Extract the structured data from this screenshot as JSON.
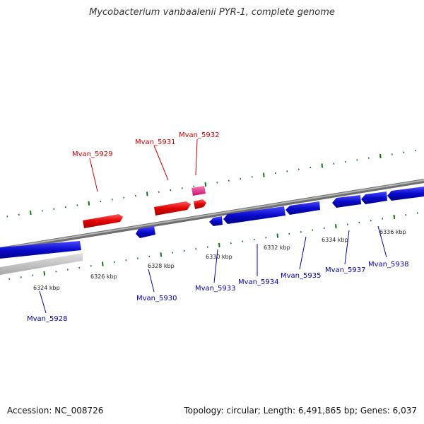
{
  "title": "Mycobacterium vanbaalenii PYR-1, complete genome",
  "footer": {
    "accession": "Accession: NC_008726",
    "stats": "Topology: circular; Length: 6,491,865 bp; Genes: 6,037"
  },
  "colors": {
    "forward_gene": "#e00000",
    "reverse_gene": "#0a0acc",
    "rna_gene": "#e0288c",
    "backbone": "#8c8c8c",
    "tick": "#117711",
    "forward_label": "#cc0000",
    "reverse_label": "#0000aa"
  },
  "ticks": [
    {
      "label": "6324 kbp"
    },
    {
      "label": "6326 kbp"
    },
    {
      "label": "6328 kbp"
    },
    {
      "label": "6330 kbp"
    },
    {
      "label": "6332 kbp"
    },
    {
      "label": "6334 kbp"
    },
    {
      "label": "6336 kbp"
    }
  ],
  "genes_forward": [
    {
      "label": "Mvan_5929"
    },
    {
      "label": "Mvan_5931"
    },
    {
      "label": "Mvan_5932"
    }
  ],
  "genes_reverse": [
    {
      "label": "Mvan_5928"
    },
    {
      "label": "Mvan_5930"
    },
    {
      "label": "Mvan_5933"
    },
    {
      "label": "Mvan_5934"
    },
    {
      "label": "Mvan_5935"
    },
    {
      "label": "Mvan_5937"
    },
    {
      "label": "Mvan_5938"
    }
  ]
}
